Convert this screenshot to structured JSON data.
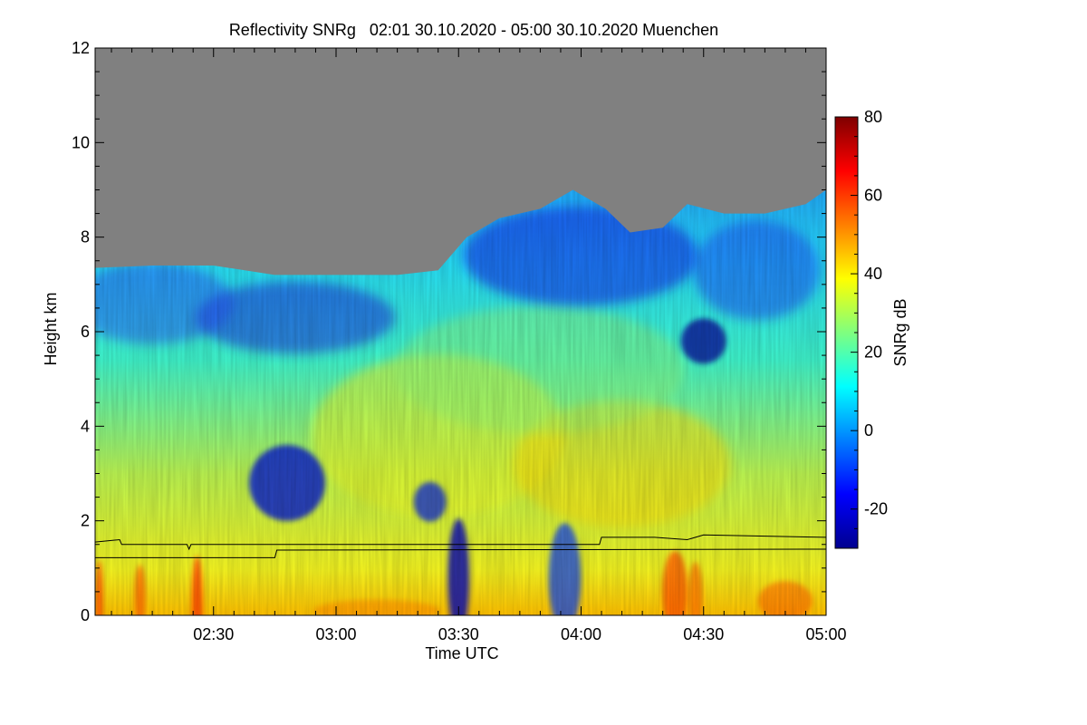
{
  "chart_data": {
    "type": "heatmap",
    "title": "Reflectivity SNRg   02:01 30.10.2020 - 05:00 30.10.2020 Muenchen",
    "xlabel": "Time UTC",
    "ylabel": "Height km",
    "x_range_minutes_utc": [
      121,
      300
    ],
    "x_ticks": [
      {
        "label": "02:30",
        "value": 150
      },
      {
        "label": "03:00",
        "value": 180
      },
      {
        "label": "03:30",
        "value": 210
      },
      {
        "label": "04:00",
        "value": 240
      },
      {
        "label": "04:30",
        "value": 270
      },
      {
        "label": "05:00",
        "value": 300
      }
    ],
    "ylim": [
      0,
      12
    ],
    "y_ticks": [
      0,
      2,
      4,
      6,
      8,
      10,
      12
    ],
    "colorbar": {
      "label": "SNRg dB",
      "range": [
        -30,
        80
      ],
      "ticks": [
        -20,
        0,
        20,
        40,
        60,
        80
      ],
      "colormap": "jet"
    },
    "no_data_color": "#808080",
    "echo_top_km": [
      {
        "t": 121,
        "h": 7.35
      },
      {
        "t": 135,
        "h": 7.4
      },
      {
        "t": 150,
        "h": 7.4
      },
      {
        "t": 165,
        "h": 7.2
      },
      {
        "t": 180,
        "h": 7.2
      },
      {
        "t": 195,
        "h": 7.2
      },
      {
        "t": 205,
        "h": 7.3
      },
      {
        "t": 212,
        "h": 8.0
      },
      {
        "t": 220,
        "h": 8.4
      },
      {
        "t": 230,
        "h": 8.6
      },
      {
        "t": 238,
        "h": 9.0
      },
      {
        "t": 246,
        "h": 8.6
      },
      {
        "t": 252,
        "h": 8.1
      },
      {
        "t": 260,
        "h": 8.2
      },
      {
        "t": 266,
        "h": 8.7
      },
      {
        "t": 275,
        "h": 8.5
      },
      {
        "t": 285,
        "h": 8.5
      },
      {
        "t": 295,
        "h": 8.7
      },
      {
        "t": 300,
        "h": 9.0
      }
    ],
    "series": [
      {
        "points": [
          {
            "t": 121,
            "h": 1.55
          },
          {
            "t": 127,
            "h": 1.6
          },
          {
            "t": 127.5,
            "h": 1.5
          },
          {
            "t": 143.5,
            "h": 1.5
          },
          {
            "t": 144,
            "h": 1.4
          },
          {
            "t": 144.5,
            "h": 1.5
          },
          {
            "t": 244.5,
            "h": 1.5
          },
          {
            "t": 245,
            "h": 1.65
          },
          {
            "t": 258,
            "h": 1.65
          },
          {
            "t": 266,
            "h": 1.6
          },
          {
            "t": 270,
            "h": 1.7
          },
          {
            "t": 300,
            "h": 1.65
          }
        ]
      },
      {
        "points": [
          {
            "t": 121,
            "h": 1.22
          },
          {
            "t": 165,
            "h": 1.22
          },
          {
            "t": 165.5,
            "h": 1.38
          },
          {
            "t": 300,
            "h": 1.4
          }
        ]
      }
    ]
  }
}
